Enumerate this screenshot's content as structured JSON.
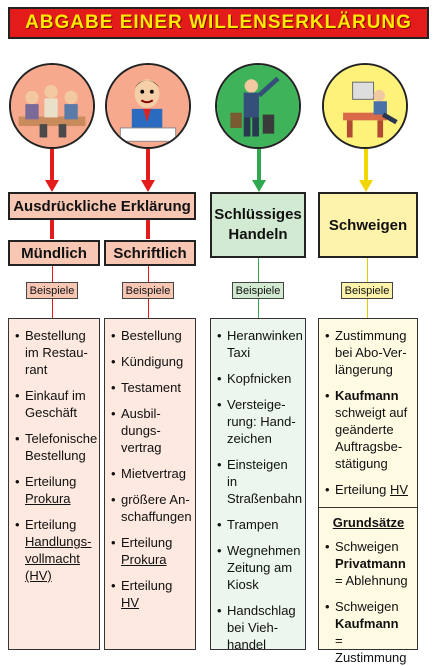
{
  "title": "ABGABE EINER WILLENSERKLÄRUNG",
  "colors": {
    "red": "#e31b1b",
    "yellow_text": "#ffea00",
    "salmon": "#f7c7b4",
    "green": "#d2ead2",
    "yellow": "#fdf3ab",
    "arrow_red": "#e31b1b",
    "arrow_green": "#2fa84f",
    "arrow_yellow": "#f2d600"
  },
  "headers": {
    "ausdrueckliche": "Ausdrückliche Erklärung",
    "muendlich": "Mündlich",
    "schriftlich": "Schriftlich",
    "schluessiges_1": "Schlüssiges",
    "schluessiges_2": "Handeln",
    "schweigen": "Schweigen"
  },
  "beispiele": "Beispiele",
  "columns": {
    "muendlich": [
      [
        "Bestellung",
        "im Restau-",
        "rant"
      ],
      [
        "Einkauf im",
        "Geschäft"
      ],
      [
        "Telefonische",
        "Bestellung"
      ],
      [
        "Erteilung",
        "Prokura"
      ],
      [
        "Erteilung",
        "Handlungs-",
        "vollmacht",
        "(HV)"
      ]
    ],
    "schriftlich": [
      [
        "Bestellung"
      ],
      [
        "Kündigung"
      ],
      [
        "Testament"
      ],
      [
        "Ausbil-",
        "dungs-",
        "vertrag"
      ],
      [
        "Mietvertrag"
      ],
      [
        "größere An-",
        "schaffungen"
      ],
      [
        "Erteilung",
        "Prokura"
      ],
      [
        "Erteilung",
        "HV"
      ]
    ],
    "schluessig": [
      [
        "Heranwinken",
        "Taxi"
      ],
      [
        "Kopfnicken"
      ],
      [
        "Versteige-",
        "rung: Hand-",
        "zeichen"
      ],
      [
        "Einsteigen in",
        "Straßenbahn"
      ],
      [
        "Trampen"
      ],
      [
        "Wegnehmen",
        "Zeitung am",
        "Kiosk"
      ],
      [
        "Handschlag",
        "bei Vieh-",
        "handel"
      ]
    ],
    "schweigen": [
      [
        "Zustimmung",
        "bei Abo-Ver-",
        "längerung"
      ],
      [
        "Kaufmann",
        "schweigt auf",
        "geänderte",
        "Auftragsbe-",
        "stätigung"
      ],
      [
        "Erteilung",
        "HV"
      ]
    ],
    "grundsaetze_title": "Grundsätze",
    "grundsaetze": [
      [
        "Schweigen",
        "Privatmann",
        "= Ablehnung"
      ],
      [
        "Schweigen",
        "Kaufmann",
        "= Zustimmung"
      ]
    ]
  },
  "icons": [
    "meeting-illustration-icon",
    "writing-man-illustration-icon",
    "traveler-hailing-illustration-icon",
    "office-worker-illustration-icon"
  ]
}
